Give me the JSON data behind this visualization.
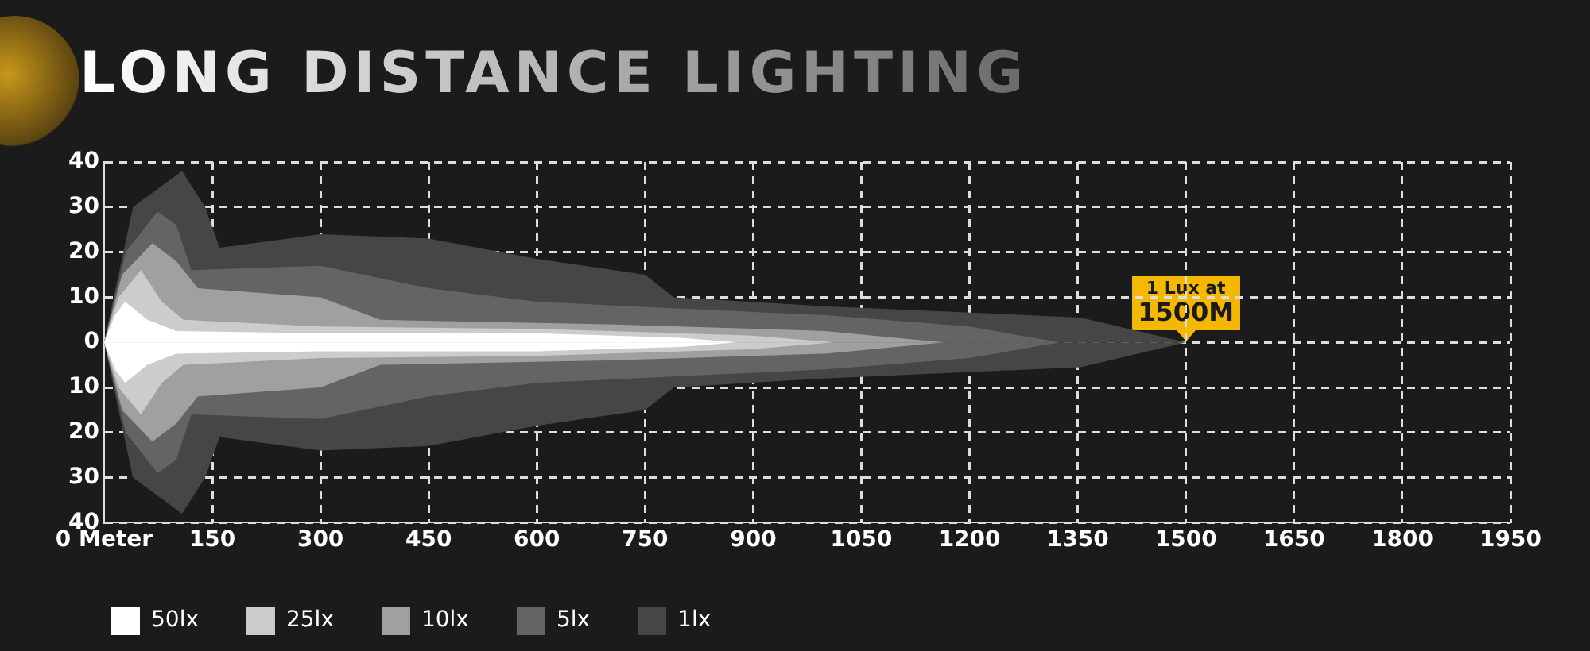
{
  "chart_data": {
    "type": "area",
    "title": "LONG DISTANCE LIGHTING",
    "xlim": [
      0,
      1950
    ],
    "xticks": [
      {
        "value": 0,
        "label": "0 Meter"
      },
      150,
      300,
      450,
      600,
      750,
      900,
      1050,
      1200,
      1350,
      1500,
      1650,
      1800,
      1950
    ],
    "ylim": [
      -40,
      40
    ],
    "yticks": [
      {
        "value": -40,
        "label": "40"
      },
      {
        "value": -30,
        "label": "30"
      },
      {
        "value": -20,
        "label": "20"
      },
      {
        "value": -10,
        "label": "10"
      },
      0,
      10,
      20,
      30,
      40
    ],
    "grid": true,
    "legend": "bottom left",
    "series": [
      {
        "name": "50lx",
        "color": "#ffffff",
        "x": [
          0,
          15,
          29,
          60,
          100,
          300,
          600,
          800,
          877
        ],
        "values": [
          0,
          6,
          9,
          5,
          2.5,
          2,
          2,
          1,
          0
        ]
      },
      {
        "color": "#ffffff",
        "x": [
          0,
          15,
          29,
          60,
          100,
          300,
          600,
          800,
          877
        ],
        "values": [
          0,
          -6,
          -9,
          -5,
          -2.5,
          -2,
          -2,
          -1,
          0
        ]
      },
      {
        "name": "25lx",
        "color": "#cccccc",
        "x": [
          0,
          20,
          51,
          80,
          110,
          300,
          600,
          900,
          1011
        ],
        "values": [
          0,
          10,
          16,
          9,
          5,
          3.5,
          3,
          1.5,
          0
        ]
      },
      {
        "color": "#cccccc",
        "x": [
          0,
          20,
          51,
          80,
          110,
          300,
          600,
          900,
          1011
        ],
        "values": [
          0,
          -10,
          -16,
          -9,
          -5,
          -3.5,
          -3,
          -1.5,
          0
        ]
      },
      {
        "name": "10lx",
        "color": "#a0a0a0",
        "x": [
          0,
          25,
          67,
          100,
          130,
          300,
          383,
          700,
          1000,
          1164
        ],
        "values": [
          0,
          15,
          22,
          18,
          12,
          10,
          5,
          4,
          2.5,
          0
        ]
      },
      {
        "color": "#a0a0a0",
        "x": [
          0,
          25,
          67,
          100,
          130,
          300,
          383,
          700,
          1000,
          1164
        ],
        "values": [
          0,
          -15,
          -22,
          -18,
          -12,
          -10,
          -5,
          -4,
          -2.5,
          0
        ]
      },
      {
        "name": "5lx",
        "color": "#646464",
        "x": [
          0,
          30,
          74,
          100,
          121,
          300,
          450,
          600,
          1000,
          1200,
          1325
        ],
        "values": [
          0,
          20,
          29,
          26,
          16,
          17,
          12,
          9,
          6,
          3.5,
          0
        ]
      },
      {
        "color": "#646464",
        "x": [
          0,
          30,
          74,
          100,
          121,
          300,
          450,
          600,
          1000,
          1200,
          1325
        ],
        "values": [
          0,
          -20,
          -29,
          -26,
          -16,
          -17,
          -12,
          -9,
          -6,
          -3.5,
          0
        ]
      },
      {
        "name": "1lx",
        "color": "#464646",
        "x": [
          0,
          40,
          108,
          140,
          160,
          300,
          450,
          600,
          750,
          790,
          1000,
          1354,
          1500
        ],
        "values": [
          0,
          30,
          38,
          30,
          21,
          24,
          23,
          18.5,
          15,
          10,
          8,
          5.5,
          0
        ]
      },
      {
        "color": "#464646",
        "x": [
          0,
          40,
          108,
          140,
          160,
          300,
          450,
          600,
          750,
          790,
          1000,
          1354,
          1500
        ],
        "values": [
          0,
          -30,
          -38,
          -30,
          -21,
          -24,
          -23,
          -18.5,
          -15,
          -10,
          -8,
          -5.5,
          0
        ]
      }
    ],
    "annotations": [
      {
        "text": "1 Lux at\n1500M",
        "x": 1500,
        "y": 0
      }
    ]
  }
}
